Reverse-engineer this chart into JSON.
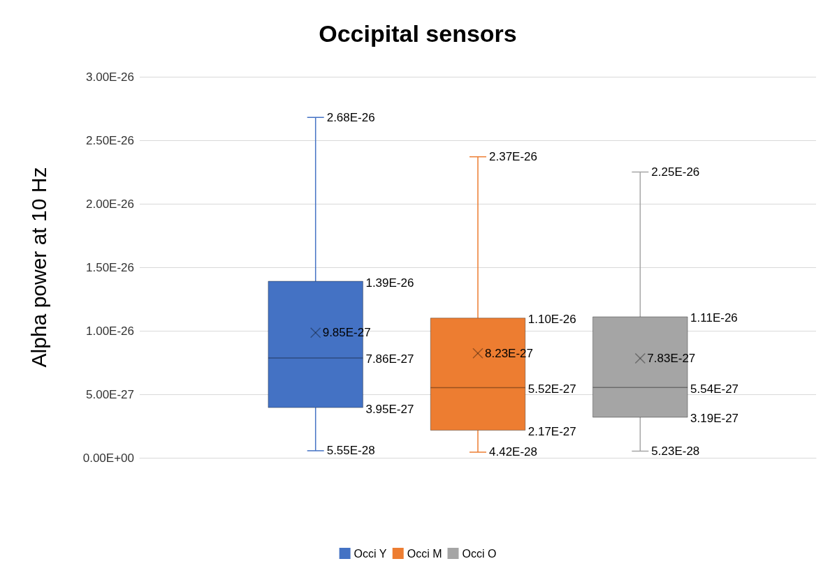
{
  "chart_data": {
    "type": "box",
    "title": "Occipital sensors",
    "ylabel": "Alpha power at 10 Hz",
    "categories": [
      null
    ],
    "series": [
      {
        "name": "Occi Y",
        "color": "#4472c4",
        "boxes": [
          {
            "low": 5.55e-28,
            "q1": 3.95e-27,
            "median": 7.86e-27,
            "q3": 1.39e-26,
            "high": 2.68e-26,
            "mean": 9.85e-27
          }
        ]
      },
      {
        "name": "Occi M",
        "color": "#ed7d31",
        "boxes": [
          {
            "low": 4.42e-28,
            "q1": 2.17e-27,
            "median": 5.52e-27,
            "q3": 1.1e-26,
            "high": 2.37e-26,
            "mean": 8.23e-27
          }
        ]
      },
      {
        "name": "Occi O",
        "color": "#a5a5a5",
        "boxes": [
          {
            "low": 5.23e-28,
            "q1": 3.19e-27,
            "median": 5.54e-27,
            "q3": 1.11e-26,
            "high": 2.25e-26,
            "mean": 7.83e-27
          }
        ]
      }
    ],
    "annotations": [
      "2.68E-26",
      "1.39E-26",
      "7.86E-27",
      "3.95E-27",
      "5.55E-28",
      "9.85E-27",
      "2.37E-26",
      "1.10E-26",
      "5.52E-27",
      "2.17E-27",
      "4.42E-28",
      "8.23E-27",
      "2.25E-26",
      "1.11E-26",
      "5.54E-27",
      "3.19E-27",
      "5.23E-28",
      "7.83E-27"
    ],
    "ylim": [
      0,
      3e-26
    ],
    "yticks": [
      {
        "value": 0,
        "label": "0.00E+00"
      },
      {
        "value": 5e-27,
        "label": "5.00E-27"
      },
      {
        "value": 1e-26,
        "label": "1.00E-26"
      },
      {
        "value": 1.5e-26,
        "label": "1.50E-26"
      },
      {
        "value": 2e-26,
        "label": "2.00E-26"
      },
      {
        "value": 2.5e-26,
        "label": "2.50E-26"
      },
      {
        "value": 3e-26,
        "label": "3.00E-26"
      }
    ],
    "grid": "y",
    "legend": "bottom",
    "marker": "cross",
    "data_labels": true
  }
}
